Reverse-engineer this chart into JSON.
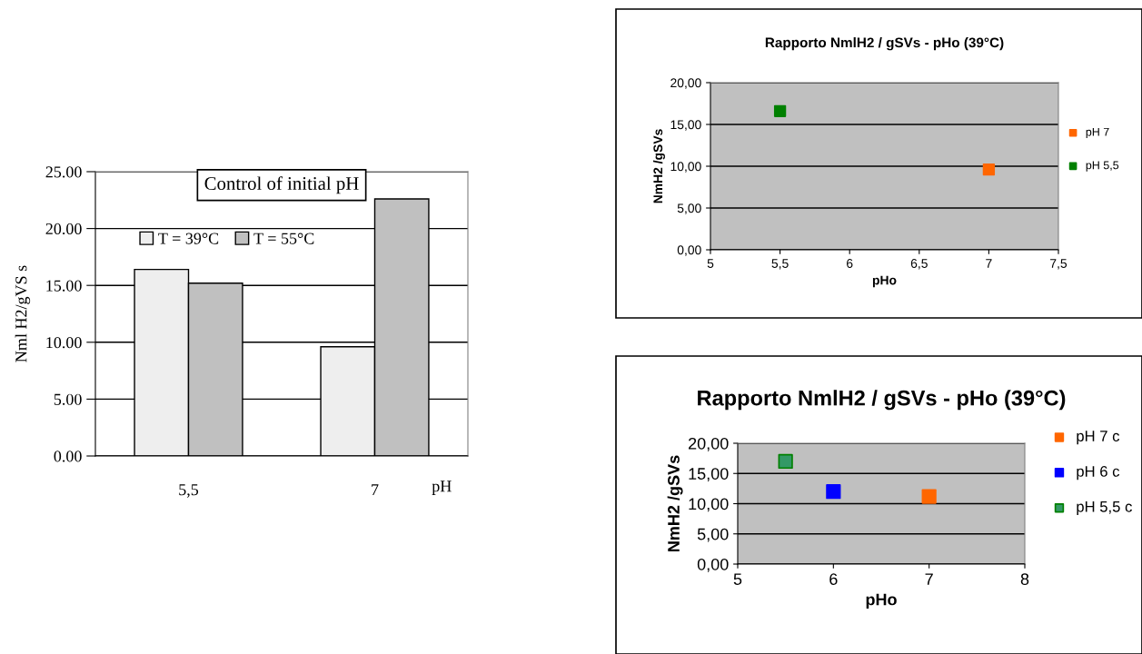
{
  "chart_data": [
    {
      "type": "bar",
      "title": "Control of initial pH",
      "ylabel": "Nml H2/gVS s",
      "xlabel": "pH",
      "categories": [
        "5,5",
        "7"
      ],
      "series": [
        {
          "name": "T = 39°C",
          "color": "#eeeeee",
          "values": [
            16.4,
            9.6
          ]
        },
        {
          "name": "T = 55°C",
          "color": "#c0c0c0",
          "values": [
            15.2,
            22.6
          ]
        }
      ],
      "ylim": [
        0,
        25
      ],
      "yticks": [
        {
          "value": 0,
          "label": "0.00"
        },
        {
          "value": 5,
          "label": "5.00"
        },
        {
          "value": 10,
          "label": "10.00"
        },
        {
          "value": 15,
          "label": "15.00"
        },
        {
          "value": 20,
          "label": "20.00"
        },
        {
          "value": 25,
          "label": "25.00"
        }
      ],
      "grid": "y",
      "legend": "top left"
    },
    {
      "type": "scatter",
      "title": "Rapporto NmlH2 / gSVs - pHo (39°C)",
      "xlabel": "pHo",
      "ylabel": "NmH2 /gSVs",
      "series": [
        {
          "name": "pH 7",
          "color": "#ff6600",
          "x": [
            7
          ],
          "values": [
            9.6
          ]
        },
        {
          "name": "pH 5,5",
          "color": "#008000",
          "x": [
            5.5
          ],
          "values": [
            16.6
          ]
        }
      ],
      "xlim": [
        5,
        7.5
      ],
      "xticks": [
        5,
        {
          "value": 5.5,
          "label": "5,5"
        },
        6,
        {
          "value": 6.5,
          "label": "6,5"
        },
        7,
        {
          "value": 7.5,
          "label": "7,5"
        }
      ],
      "ylim": [
        0,
        20
      ],
      "yticks": [
        {
          "value": 0,
          "label": "0,00"
        },
        {
          "value": 5,
          "label": "5,00"
        },
        {
          "value": 10,
          "label": "10,00"
        },
        {
          "value": 15,
          "label": "15,00"
        },
        {
          "value": 20,
          "label": "20,00"
        }
      ],
      "grid": "y",
      "legend": "right",
      "marker": "square"
    },
    {
      "type": "scatter",
      "title": "Rapporto NmlH2 / gSVs - pHo (39°C)",
      "xlabel": "pHo",
      "ylabel": "NmH2 /gSVs",
      "series": [
        {
          "name": "pH 7 c",
          "color": "#ff6600",
          "x": [
            7
          ],
          "values": [
            11.2
          ]
        },
        {
          "name": "pH 6 c",
          "color": "#0000ff",
          "x": [
            6
          ],
          "values": [
            12.0
          ]
        },
        {
          "name": "pH 5,5 c",
          "color": "#339966",
          "x": [
            5.5
          ],
          "values": [
            17.0
          ]
        }
      ],
      "xlim": [
        5,
        8
      ],
      "xticks": [
        5,
        6,
        7,
        8
      ],
      "ylim": [
        0,
        20
      ],
      "yticks": [
        {
          "value": 0,
          "label": "0,00"
        },
        {
          "value": 5,
          "label": "5,00"
        },
        {
          "value": 10,
          "label": "10,00"
        },
        {
          "value": 15,
          "label": "15,00"
        },
        {
          "value": 20,
          "label": "20,00"
        }
      ],
      "grid": "y",
      "legend": "top right",
      "marker": "square"
    }
  ]
}
